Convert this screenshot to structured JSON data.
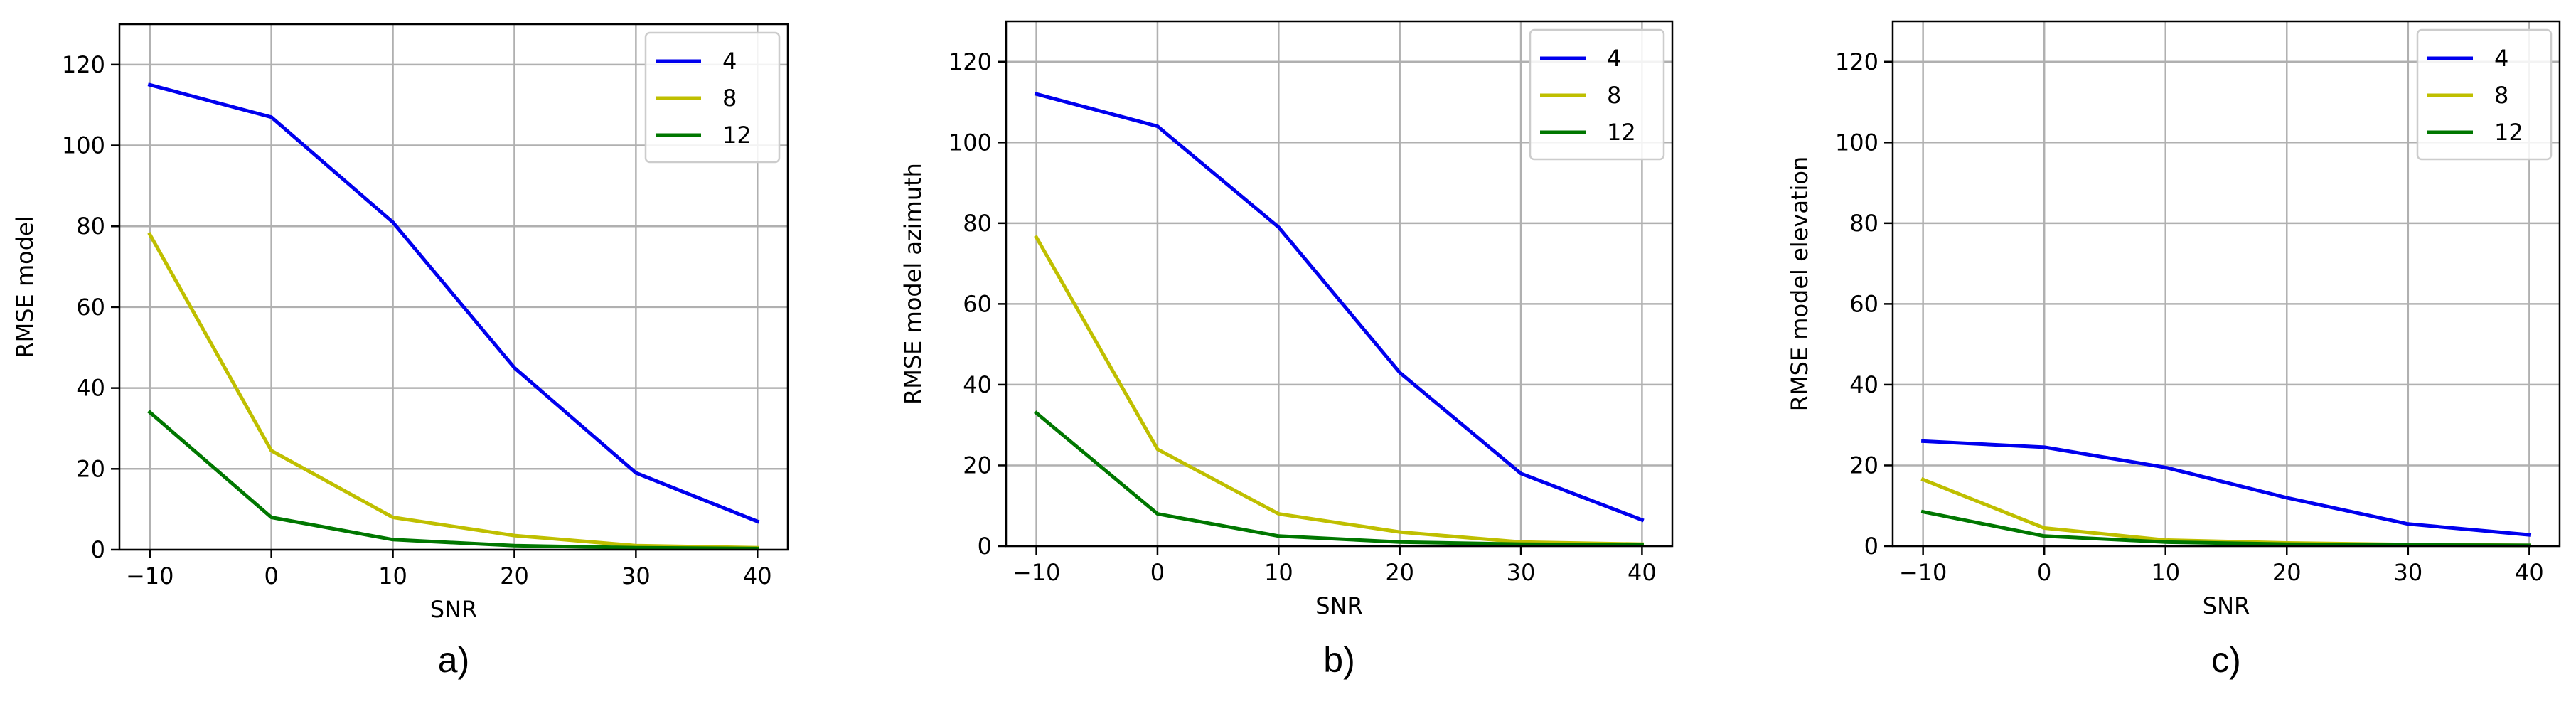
{
  "chart_data": [
    {
      "type": "line",
      "caption": "a)",
      "xlabel": "SNR",
      "ylabel": "RMSE model",
      "x": [
        -10,
        0,
        10,
        20,
        30,
        40
      ],
      "xticks": [
        -10,
        0,
        10,
        20,
        30,
        40
      ],
      "yticks": [
        0,
        20,
        40,
        60,
        80,
        100,
        120
      ],
      "xlim": [
        -12.5,
        42.5
      ],
      "ylim": [
        0,
        130
      ],
      "grid": true,
      "legend": "top-right",
      "series": [
        {
          "name": "4",
          "color": "#0000ee",
          "values": [
            115,
            107,
            81,
            45,
            19,
            7
          ]
        },
        {
          "name": "8",
          "color": "#bfbf00",
          "values": [
            78,
            24.5,
            8,
            3.5,
            1,
            0.5
          ]
        },
        {
          "name": "12",
          "color": "#007700",
          "values": [
            34,
            8,
            2.5,
            1,
            0.5,
            0.3
          ]
        }
      ]
    },
    {
      "type": "line",
      "caption": "b)",
      "xlabel": "SNR",
      "ylabel": "RMSE model azimuth",
      "x": [
        -10,
        0,
        10,
        20,
        30,
        40
      ],
      "xticks": [
        -10,
        0,
        10,
        20,
        30,
        40
      ],
      "yticks": [
        0,
        20,
        40,
        60,
        80,
        100,
        120
      ],
      "xlim": [
        -12.5,
        42.5
      ],
      "ylim": [
        0,
        130
      ],
      "grid": true,
      "legend": "top-right",
      "series": [
        {
          "name": "4",
          "color": "#0000ee",
          "values": [
            112,
            104,
            79,
            43,
            18,
            6.5
          ]
        },
        {
          "name": "8",
          "color": "#bfbf00",
          "values": [
            76.5,
            24,
            8,
            3.5,
            1,
            0.5
          ]
        },
        {
          "name": "12",
          "color": "#007700",
          "values": [
            33,
            8,
            2.5,
            1,
            0.5,
            0.3
          ]
        }
      ]
    },
    {
      "type": "line",
      "caption": "c)",
      "xlabel": "SNR",
      "ylabel": "RMSE model elevation",
      "x": [
        -10,
        0,
        10,
        20,
        30,
        40
      ],
      "xticks": [
        -10,
        0,
        10,
        20,
        30,
        40
      ],
      "yticks": [
        0,
        20,
        40,
        60,
        80,
        100,
        120
      ],
      "xlim": [
        -12.5,
        42.5
      ],
      "ylim": [
        0,
        130
      ],
      "grid": true,
      "legend": "top-right",
      "series": [
        {
          "name": "4",
          "color": "#0000ee",
          "values": [
            26,
            24.5,
            19.5,
            12,
            5.5,
            2.8
          ]
        },
        {
          "name": "8",
          "color": "#bfbf00",
          "values": [
            16.5,
            4.5,
            1.5,
            0.8,
            0.4,
            0.2
          ]
        },
        {
          "name": "12",
          "color": "#007700",
          "values": [
            8.5,
            2.5,
            1,
            0.5,
            0.3,
            0.2
          ]
        }
      ]
    }
  ]
}
